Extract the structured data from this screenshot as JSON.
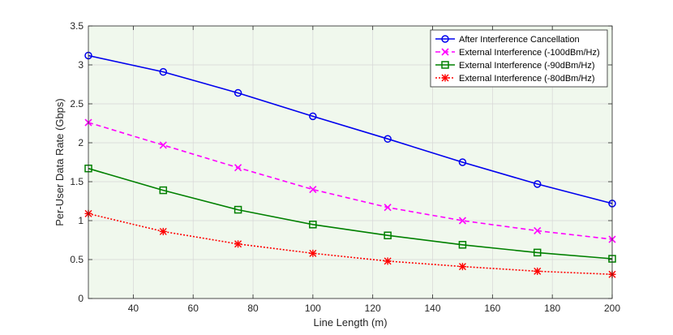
{
  "chart_data": {
    "type": "line",
    "xlabel": "Line Length (m)",
    "ylabel": "Per-User Data Rate (Gbps)",
    "xlim": [
      25,
      200
    ],
    "ylim": [
      0,
      3.5
    ],
    "xticks": [
      40,
      60,
      80,
      100,
      120,
      140,
      160,
      180,
      200
    ],
    "yticks": [
      0,
      0.5,
      1,
      1.5,
      2,
      2.5,
      3,
      3.5
    ],
    "xtick_labels": [
      "40",
      "60",
      "80",
      "100",
      "120",
      "140",
      "160",
      "180",
      "200"
    ],
    "ytick_labels": [
      "0",
      "0.5",
      "1",
      "1.5",
      "2",
      "2.5",
      "3",
      "3.5"
    ],
    "grid": true,
    "legend_position": "top-right",
    "x": [
      25,
      50,
      75,
      100,
      125,
      150,
      175,
      200
    ],
    "series": [
      {
        "name": "After Interference Cancellation",
        "values": [
          3.12,
          2.91,
          2.64,
          2.34,
          2.05,
          1.75,
          1.47,
          1.22
        ],
        "color": "#0000ee",
        "line_style": "solid",
        "marker": "circle"
      },
      {
        "name": "External Interference (-100dBm/Hz)",
        "values": [
          2.26,
          1.97,
          1.68,
          1.4,
          1.17,
          1.0,
          0.87,
          0.76
        ],
        "color": "#ff00ff",
        "line_style": "dashed",
        "marker": "x"
      },
      {
        "name": "External Interference (-90dBm/Hz)",
        "values": [
          1.67,
          1.39,
          1.14,
          0.95,
          0.81,
          0.69,
          0.59,
          0.51
        ],
        "color": "#008000",
        "line_style": "solid",
        "marker": "square"
      },
      {
        "name": "External Interference (-80dBm/Hz)",
        "values": [
          1.09,
          0.86,
          0.7,
          0.58,
          0.48,
          0.41,
          0.35,
          0.31
        ],
        "color": "#ff0000",
        "line_style": "dotted",
        "marker": "star"
      }
    ],
    "plot_background": "#f0f8ed",
    "grid_color": "#d6d6d6",
    "axis_color": "#262626"
  }
}
